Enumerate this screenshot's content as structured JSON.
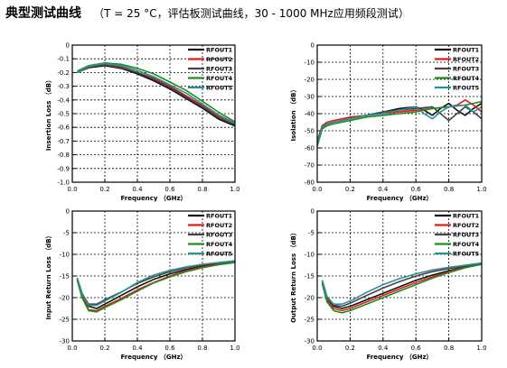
{
  "header": {
    "title": "典型测试曲线",
    "subtitle": "（T = 25 °C，评估板测试曲线，30 - 1000 MHz应用频段测试）"
  },
  "colors": {
    "RFOUT1": "#111111",
    "RFOUT2": "#e41a1c",
    "RFOUT3": "#444444",
    "RFOUT4": "#1b8f1b",
    "RFOUT5": "#2b8f9a"
  },
  "chart_data": [
    {
      "type": "line",
      "xlabel": "Frequency （GHz）",
      "ylabel": "Insertion Loss （dB）",
      "xlim": [
        0.0,
        1.0
      ],
      "ylim": [
        -1.0,
        0.0
      ],
      "xticks": [
        "0.0",
        "0.2",
        "0.4",
        "0.6",
        "0.8",
        "1.0"
      ],
      "yticks": [
        "0",
        "-0.1",
        "-0.2",
        "-0.3",
        "-0.4",
        "-0.5",
        "-0.6",
        "-0.7",
        "-0.8",
        "-0.9",
        "-1.0"
      ],
      "grid": true,
      "legend_position": "top-right",
      "series": [
        {
          "name": "RFOUT1",
          "x": [
            0.03,
            0.1,
            0.2,
            0.3,
            0.4,
            0.5,
            0.6,
            0.7,
            0.8,
            0.9,
            1.0
          ],
          "y": [
            -0.2,
            -0.165,
            -0.15,
            -0.17,
            -0.21,
            -0.26,
            -0.32,
            -0.39,
            -0.46,
            -0.54,
            -0.59
          ]
        },
        {
          "name": "RFOUT2",
          "x": [
            0.03,
            0.1,
            0.2,
            0.3,
            0.4,
            0.5,
            0.6,
            0.7,
            0.8,
            0.9,
            1.0
          ],
          "y": [
            -0.2,
            -0.16,
            -0.14,
            -0.16,
            -0.2,
            -0.24,
            -0.3,
            -0.37,
            -0.44,
            -0.52,
            -0.57
          ]
        },
        {
          "name": "RFOUT3",
          "x": [
            0.03,
            0.1,
            0.2,
            0.3,
            0.4,
            0.5,
            0.6,
            0.7,
            0.8,
            0.9,
            1.0
          ],
          "y": [
            -0.2,
            -0.16,
            -0.145,
            -0.165,
            -0.2,
            -0.25,
            -0.31,
            -0.38,
            -0.45,
            -0.53,
            -0.58
          ]
        },
        {
          "name": "RFOUT4",
          "x": [
            0.03,
            0.1,
            0.2,
            0.3,
            0.4,
            0.5,
            0.6,
            0.7,
            0.8,
            0.9,
            1.0
          ],
          "y": [
            -0.19,
            -0.15,
            -0.13,
            -0.14,
            -0.17,
            -0.21,
            -0.27,
            -0.33,
            -0.41,
            -0.49,
            -0.56
          ]
        },
        {
          "name": "RFOUT5",
          "x": [
            0.03,
            0.1,
            0.2,
            0.3,
            0.4,
            0.5,
            0.6,
            0.7,
            0.8,
            0.9,
            1.0
          ],
          "y": [
            -0.2,
            -0.155,
            -0.135,
            -0.15,
            -0.185,
            -0.23,
            -0.29,
            -0.35,
            -0.43,
            -0.51,
            -0.57
          ]
        }
      ]
    },
    {
      "type": "line",
      "xlabel": "Frequency （GHz）",
      "ylabel": "Isolation （dB）",
      "xlim": [
        0.0,
        1.0
      ],
      "ylim": [
        -80,
        0
      ],
      "xticks": [
        "0.0",
        "0.2",
        "0.4",
        "0.6",
        "0.8",
        "1.0"
      ],
      "yticks": [
        "0",
        "-10",
        "-20",
        "-30",
        "-40",
        "-50",
        "-60",
        "-70",
        "-80"
      ],
      "grid": true,
      "legend_position": "top-right",
      "series": [
        {
          "name": "RFOUT1",
          "x": [
            0.0,
            0.03,
            0.06,
            0.1,
            0.2,
            0.3,
            0.4,
            0.5,
            0.6,
            0.65,
            0.7,
            0.75,
            0.8,
            0.85,
            0.9,
            0.95,
            1.0
          ],
          "y": [
            -58,
            -48,
            -46,
            -45,
            -43,
            -41,
            -39,
            -37,
            -36,
            -38,
            -41,
            -37,
            -34,
            -38,
            -41,
            -37,
            -34
          ]
        },
        {
          "name": "RFOUT2",
          "x": [
            0.0,
            0.03,
            0.06,
            0.1,
            0.2,
            0.3,
            0.4,
            0.5,
            0.6,
            0.7,
            0.8,
            0.85,
            0.9,
            0.95,
            1.0
          ],
          "y": [
            -56,
            -47,
            -45,
            -44,
            -42,
            -41,
            -40,
            -39,
            -38,
            -37,
            -36,
            -35,
            -32,
            -35,
            -39
          ]
        },
        {
          "name": "RFOUT3",
          "x": [
            0.0,
            0.03,
            0.06,
            0.1,
            0.2,
            0.3,
            0.4,
            0.5,
            0.6,
            0.7,
            0.75,
            0.8,
            0.85,
            0.9,
            0.95,
            1.0
          ],
          "y": [
            -57,
            -48,
            -46,
            -45,
            -43,
            -41,
            -39,
            -38,
            -37,
            -36,
            -40,
            -44,
            -40,
            -36,
            -39,
            -43
          ]
        },
        {
          "name": "RFOUT4",
          "x": [
            0.0,
            0.03,
            0.06,
            0.1,
            0.2,
            0.3,
            0.4,
            0.5,
            0.6,
            0.7,
            0.8,
            0.9,
            1.0
          ],
          "y": [
            -59,
            -49,
            -47,
            -46,
            -44,
            -42,
            -41,
            -40,
            -39,
            -37,
            -36,
            -35,
            -33
          ]
        },
        {
          "name": "RFOUT5",
          "x": [
            0.0,
            0.03,
            0.06,
            0.1,
            0.2,
            0.3,
            0.4,
            0.5,
            0.6,
            0.65,
            0.7,
            0.75,
            0.8,
            0.9,
            0.95,
            1.0
          ],
          "y": [
            -57,
            -48,
            -46,
            -45,
            -43,
            -41,
            -40,
            -38,
            -36,
            -40,
            -43,
            -39,
            -36,
            -35,
            -39,
            -36
          ]
        }
      ]
    },
    {
      "type": "line",
      "xlabel": "Frequency （GHz）",
      "ylabel": "Input Return Loss （dB）",
      "xlim": [
        0.0,
        1.0
      ],
      "ylim": [
        -30,
        0
      ],
      "xticks": [
        "0.0",
        "0.2",
        "0.4",
        "0.6",
        "0.8",
        "1.0"
      ],
      "yticks": [
        "0",
        "-5",
        "-10",
        "-15",
        "-20",
        "-25",
        "-30"
      ],
      "grid": true,
      "legend_position": "top-right",
      "series": [
        {
          "name": "RFOUT1",
          "x": [
            0.03,
            0.06,
            0.1,
            0.15,
            0.2,
            0.3,
            0.4,
            0.5,
            0.6,
            0.7,
            0.8,
            0.9,
            1.0
          ],
          "y": [
            -15.5,
            -19,
            -22,
            -22.5,
            -21.5,
            -19.5,
            -17.5,
            -15.8,
            -14.5,
            -13.5,
            -12.7,
            -12.2,
            -11.7
          ]
        },
        {
          "name": "RFOUT2",
          "x": [
            0.03,
            0.06,
            0.1,
            0.15,
            0.2,
            0.3,
            0.4,
            0.5,
            0.6,
            0.7,
            0.8,
            0.9,
            1.0
          ],
          "y": [
            -15.8,
            -19.5,
            -22.8,
            -23,
            -22,
            -20.2,
            -18.2,
            -16.5,
            -15,
            -13.8,
            -12.9,
            -12.3,
            -11.8
          ]
        },
        {
          "name": "RFOUT3",
          "x": [
            0.03,
            0.06,
            0.1,
            0.15,
            0.2,
            0.3,
            0.4,
            0.5,
            0.6,
            0.7,
            0.8,
            0.9,
            1.0
          ],
          "y": [
            -15.5,
            -19,
            -21.5,
            -21.5,
            -20.5,
            -18.7,
            -16.7,
            -15.2,
            -14,
            -13.1,
            -12.4,
            -12,
            -11.5
          ]
        },
        {
          "name": "RFOUT4",
          "x": [
            0.03,
            0.06,
            0.1,
            0.15,
            0.2,
            0.3,
            0.4,
            0.5,
            0.6,
            0.7,
            0.8,
            0.9,
            1.0
          ],
          "y": [
            -16,
            -20,
            -23,
            -23.3,
            -22.3,
            -20.5,
            -18.5,
            -16.6,
            -15.2,
            -14,
            -13.1,
            -12.4,
            -11.9
          ]
        },
        {
          "name": "RFOUT5",
          "x": [
            0.03,
            0.06,
            0.1,
            0.15,
            0.2,
            0.3,
            0.4,
            0.5,
            0.6,
            0.7,
            0.8,
            0.9,
            1.0
          ],
          "y": [
            -15.5,
            -19,
            -21.8,
            -21.8,
            -20.8,
            -18.8,
            -16.5,
            -14.8,
            -13.7,
            -12.9,
            -12.3,
            -11.9,
            -11.5
          ]
        }
      ]
    },
    {
      "type": "line",
      "xlabel": "Frequency （GHz）",
      "ylabel": "Output Return Loss （dB）",
      "xlim": [
        0.0,
        1.0
      ],
      "ylim": [
        -30,
        0
      ],
      "xticks": [
        "0.0",
        "0.2",
        "0.4",
        "0.6",
        "0.8",
        "1.0"
      ],
      "yticks": [
        "0",
        "-5",
        "-10",
        "-15",
        "-20",
        "-25",
        "-30"
      ],
      "grid": true,
      "legend_position": "top-right",
      "series": [
        {
          "name": "RFOUT1",
          "x": [
            0.03,
            0.06,
            0.1,
            0.15,
            0.2,
            0.3,
            0.4,
            0.5,
            0.6,
            0.7,
            0.8,
            0.9,
            1.0
          ],
          "y": [
            -16,
            -20,
            -22,
            -22.5,
            -22,
            -20.5,
            -19,
            -17.5,
            -16,
            -14.8,
            -13.8,
            -12.9,
            -12.2
          ]
        },
        {
          "name": "RFOUT2",
          "x": [
            0.03,
            0.06,
            0.1,
            0.15,
            0.2,
            0.3,
            0.4,
            0.5,
            0.6,
            0.7,
            0.8,
            0.9,
            1.0
          ],
          "y": [
            -16.5,
            -20.5,
            -22.5,
            -23,
            -22.5,
            -21,
            -19.5,
            -18,
            -16.5,
            -15.2,
            -14,
            -13,
            -12.3
          ]
        },
        {
          "name": "RFOUT3",
          "x": [
            0.03,
            0.06,
            0.1,
            0.15,
            0.2,
            0.3,
            0.4,
            0.5,
            0.6,
            0.7,
            0.8,
            0.9,
            1.0
          ],
          "y": [
            -16,
            -20,
            -21.8,
            -22,
            -21.3,
            -19.5,
            -17.8,
            -16.3,
            -15,
            -14,
            -13.3,
            -12.7,
            -12.1
          ]
        },
        {
          "name": "RFOUT4",
          "x": [
            0.03,
            0.06,
            0.1,
            0.15,
            0.2,
            0.3,
            0.4,
            0.5,
            0.6,
            0.7,
            0.8,
            0.9,
            1.0
          ],
          "y": [
            -16.8,
            -21,
            -23,
            -23.5,
            -23,
            -21.5,
            -20,
            -18.5,
            -17,
            -15.5,
            -14.2,
            -13.1,
            -12.3
          ]
        },
        {
          "name": "RFOUT5",
          "x": [
            0.03,
            0.06,
            0.1,
            0.15,
            0.2,
            0.3,
            0.4,
            0.5,
            0.6,
            0.7,
            0.8,
            0.9,
            1.0
          ],
          "y": [
            -16,
            -19.8,
            -21.5,
            -21.5,
            -20.8,
            -18.8,
            -17,
            -15.6,
            -14.5,
            -13.6,
            -13,
            -12.5,
            -12
          ]
        }
      ]
    }
  ]
}
